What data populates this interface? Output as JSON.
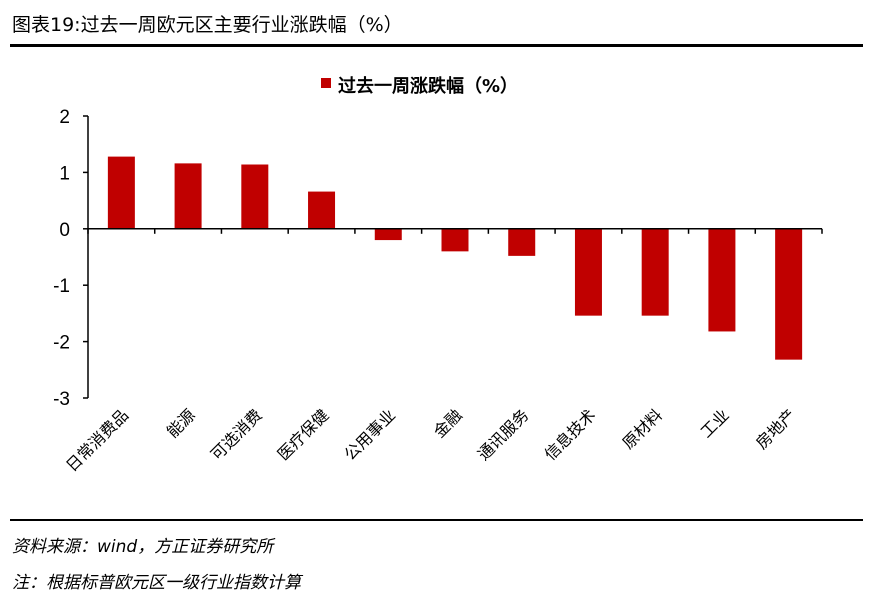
{
  "header": {
    "title": "图表19:过去一周欧元区主要行业涨跌幅（%）"
  },
  "footer": {
    "source": "资料来源：wind，方正证券研究所",
    "note": "注：根据标普欧元区一级行业指数计算"
  },
  "colors": {
    "bar": "#c00000"
  },
  "chart_data": {
    "type": "bar",
    "categories": [
      "日常消费品",
      "能源",
      "可选消费",
      "医疗保健",
      "公用事业",
      "金融",
      "通讯服务",
      "信息技术",
      "原材料",
      "工业",
      "房地产"
    ],
    "series": [
      {
        "name": "过去一周涨跌幅（%）",
        "values": [
          1.28,
          1.16,
          1.14,
          0.66,
          -0.2,
          -0.4,
          -0.48,
          -1.54,
          -1.54,
          -1.82,
          -2.32
        ]
      }
    ],
    "yticks": [
      "2",
      "1",
      "0",
      "-1",
      "-2",
      "-3"
    ],
    "ylim": [
      -3,
      2
    ],
    "legend": "top-center",
    "grid": false
  }
}
